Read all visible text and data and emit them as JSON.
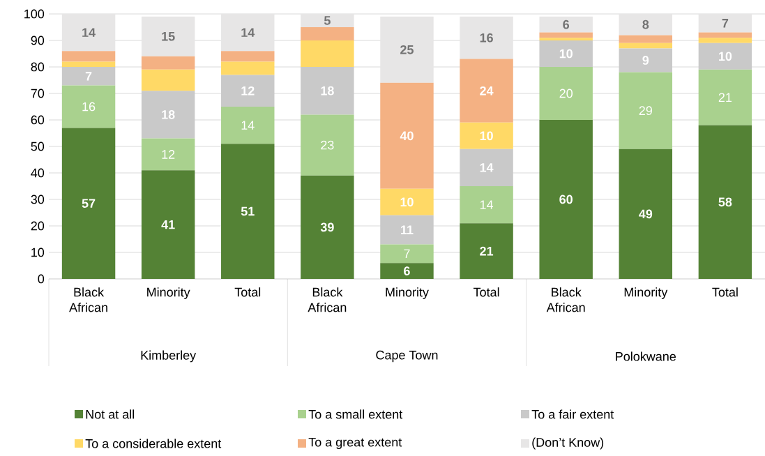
{
  "chart_data": {
    "type": "bar",
    "stacked": true,
    "categories": [
      "Black African",
      "Minority",
      "Total",
      "Black African",
      "Minority",
      "Total",
      "Black African",
      "Minority",
      "Total"
    ],
    "annotations": [
      "Kimberley",
      "Cape Town",
      "Polokwane"
    ],
    "series": [
      {
        "name": "Not at all",
        "color": "#548235",
        "values": [
          57,
          41,
          51,
          39,
          6,
          21,
          60,
          49,
          58
        ],
        "value_labels": [
          "57",
          "41",
          "51",
          "39",
          "6",
          "21",
          "60",
          "49",
          "58"
        ]
      },
      {
        "name": "To a small extent",
        "color": "#a9d18e",
        "values": [
          16,
          12,
          14,
          23,
          7,
          14,
          20,
          29,
          21
        ],
        "value_labels": [
          "16",
          "12",
          "14",
          "23",
          "7",
          "14",
          "20",
          "29",
          "21"
        ]
      },
      {
        "name": "To a fair extent",
        "color": "#c9c9c9",
        "values": [
          7,
          18,
          12,
          18,
          11,
          14,
          10,
          9,
          10
        ],
        "value_labels": [
          "7",
          "18",
          "12",
          "18",
          "11",
          "14",
          "10",
          "9",
          "10"
        ]
      },
      {
        "name": "To a considerable extent",
        "color": "#ffd966",
        "values": [
          2,
          8,
          5,
          10,
          10,
          10,
          1,
          2,
          2
        ],
        "value_labels": [
          null,
          null,
          null,
          null,
          "10",
          "10",
          null,
          null,
          null
        ]
      },
      {
        "name": "To a great extent",
        "color": "#f4b183",
        "values": [
          4,
          5,
          4,
          5,
          40,
          24,
          2,
          3,
          2
        ],
        "value_labels": [
          null,
          null,
          null,
          null,
          "40",
          "24",
          null,
          null,
          null
        ]
      },
      {
        "name": "(Don’t Know)",
        "color": "#e7e6e6",
        "values": [
          14,
          15,
          14,
          5,
          25,
          16,
          6,
          8,
          7
        ],
        "value_labels": [
          "14",
          "15",
          "14",
          "5",
          "25",
          "16",
          "6",
          "8",
          "7"
        ]
      }
    ],
    "ylim": [
      0,
      100
    ],
    "yticks": [
      0,
      10,
      20,
      30,
      40,
      50,
      60,
      70,
      80,
      90,
      100
    ],
    "grid": "y",
    "legend": "bottom"
  }
}
